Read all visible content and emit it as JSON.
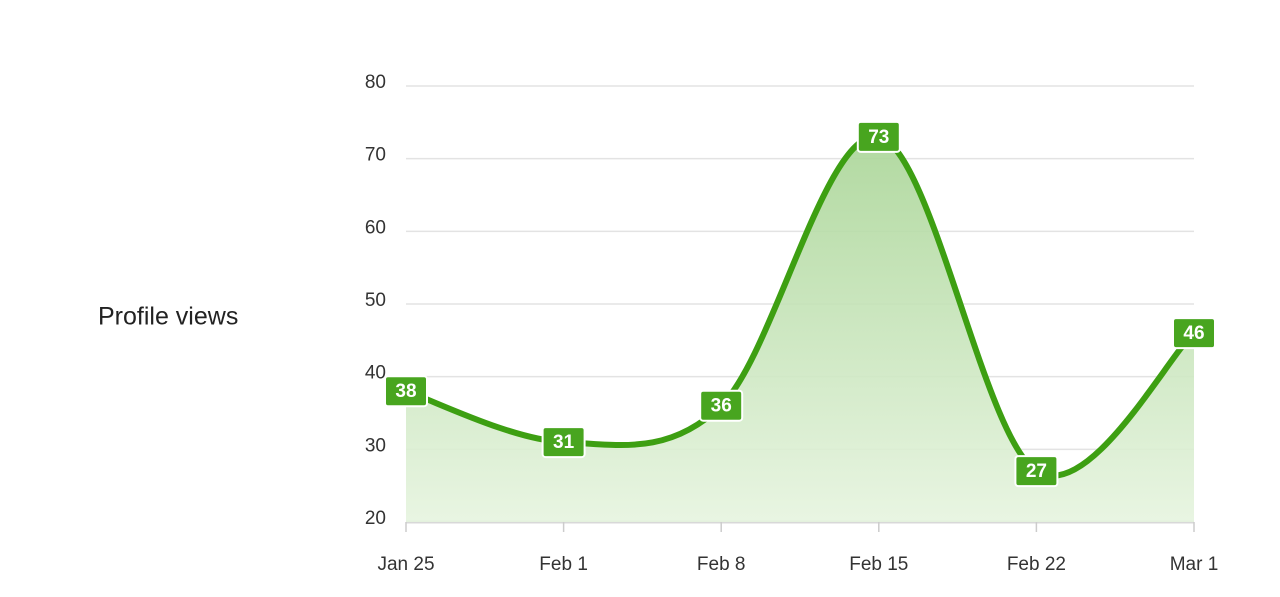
{
  "chart_data": {
    "type": "areaspline",
    "ylabel": "Profile views",
    "categories": [
      "Jan 25",
      "Feb 1",
      "Feb 8",
      "Feb 15",
      "Feb 22",
      "Mar 1"
    ],
    "values": [
      38,
      31,
      36,
      73,
      27,
      46
    ],
    "color": "#3d9f12",
    "ylim": [
      20,
      80
    ],
    "yticks": [
      20,
      30,
      40,
      50,
      60,
      70,
      80
    ],
    "grid": true
  }
}
